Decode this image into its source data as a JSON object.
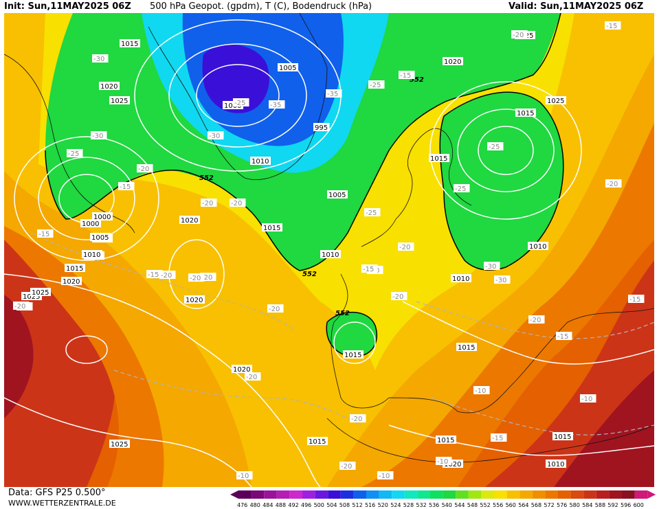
{
  "header": {
    "init": "Init: Sun,11MAY2025 06Z",
    "title": "500 hPa Geopot. (gpdm), T (C), Bodendruck (hPa)",
    "valid": "Valid: Sun,11MAY2025 06Z"
  },
  "footer": {
    "data_source": "Data: GFS P25 0.500°",
    "website": "WWW.WETTERZENTRALE.DE"
  },
  "legend": {
    "values": [
      "476",
      "480",
      "484",
      "488",
      "492",
      "496",
      "500",
      "504",
      "508",
      "512",
      "516",
      "520",
      "524",
      "528",
      "532",
      "536",
      "540",
      "544",
      "548",
      "552",
      "556",
      "560",
      "564",
      "568",
      "572",
      "576",
      "580",
      "584",
      "588",
      "592",
      "596",
      "600"
    ],
    "colors": [
      "#5a005a",
      "#7a0a7a",
      "#9a149a",
      "#b41eb4",
      "#cc28cc",
      "#a020e0",
      "#6a18e0",
      "#3a10d8",
      "#1c30e0",
      "#1060ec",
      "#1090f0",
      "#10b8f4",
      "#10d8f0",
      "#10e8c0",
      "#10e890",
      "#10e060",
      "#20d840",
      "#60e020",
      "#a0e810",
      "#dce810",
      "#f8e000",
      "#f8c000",
      "#f4a800",
      "#f09000",
      "#ec7800",
      "#e46000",
      "#d84a10",
      "#cc3418",
      "#b82020",
      "#a01420",
      "#881020",
      "#d01878"
    ]
  },
  "map": {
    "colors": {
      "ocean_warm": "#e46000",
      "ocean_orange": "#ec7800",
      "mid_orange": "#f4a800",
      "yellow_orange": "#f8c000",
      "yellow": "#f8e000",
      "green": "#20d840",
      "bright_green": "#10e060",
      "cyan": "#10d8f0",
      "blue": "#1060ec",
      "deep_blue": "#3a10d8",
      "red": "#cc3418",
      "dark_red": "#a01420"
    },
    "contour_552": [
      "552",
      "552",
      "552",
      "552"
    ],
    "pressure_labels": [
      "1015",
      "1020",
      "1025",
      "1000",
      "1005",
      "1010",
      "1020",
      "1015",
      "1000",
      "1005",
      "1010",
      "1015",
      "1020",
      "1025",
      "1020",
      "1025",
      "1025",
      "1020",
      "1000",
      "1005",
      "1000",
      "995",
      "1010",
      "1005",
      "1010",
      "1015",
      "1020",
      "1025",
      "1015",
      "1010",
      "1015",
      "1015",
      "1020",
      "1010",
      "1015",
      "1010",
      "1015",
      "1015",
      "1025"
    ],
    "temperature_labels": [
      "-30",
      "-30",
      "-25",
      "-20",
      "-15",
      "-15",
      "-15",
      "-20",
      "-20",
      "-20",
      "-20",
      "-35",
      "-35",
      "-30",
      "-25",
      "-20",
      "-25",
      "-25",
      "-20",
      "-25",
      "-30",
      "-30",
      "-25",
      "-20",
      "-20",
      "-20",
      "-20",
      "-20",
      "-20",
      "-15",
      "-15",
      "-10",
      "-15",
      "-15",
      "-10",
      "-10",
      "-10",
      "-10",
      "-15",
      "-20",
      "-15",
      "-20",
      "-20",
      "-15",
      "-20"
    ]
  }
}
